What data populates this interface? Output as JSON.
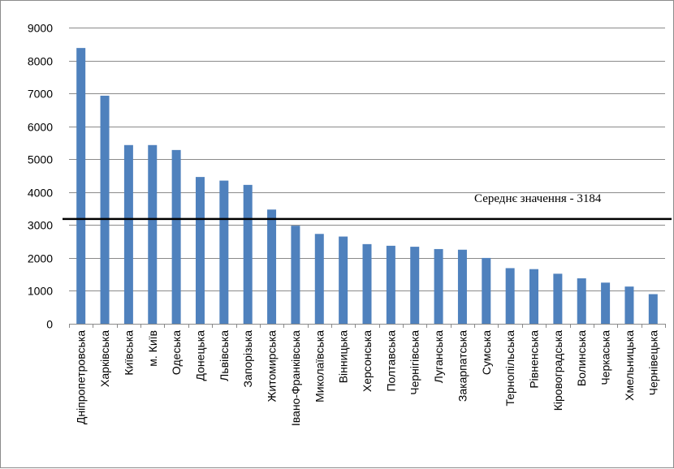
{
  "chart_data": {
    "type": "bar",
    "categories": [
      "Дніпропетровська",
      "Харківська",
      "Київська",
      "м. Київ",
      "Одеська",
      "Донецька",
      "Львівська",
      "Запорізька",
      "Житомирська",
      "Івано-Франківська",
      "Миколаївська",
      "Вінницька",
      "Херсонська",
      "Полтавська",
      "Чернігівська",
      "Луганська",
      "Закарпатська",
      "Сумська",
      "Тернопільська",
      "Рівненська",
      "Кіровоградська",
      "Волинська",
      "Черкаська",
      "Хмельницька",
      "Чернівецька"
    ],
    "values": [
      8380,
      6930,
      5430,
      5430,
      5280,
      4460,
      4350,
      4220,
      3470,
      2980,
      2730,
      2650,
      2420,
      2370,
      2340,
      2270,
      2250,
      2000,
      1690,
      1660,
      1520,
      1380,
      1250,
      1130,
      900
    ],
    "ylim": [
      0,
      9000
    ],
    "yticks": [
      0,
      1000,
      2000,
      3000,
      4000,
      5000,
      6000,
      7000,
      8000,
      9000
    ],
    "grid": true,
    "bar_color": "#4f81bd",
    "reference_line": {
      "value": 3184,
      "label": "Середнє значення - 3184",
      "color": "#000000"
    }
  }
}
